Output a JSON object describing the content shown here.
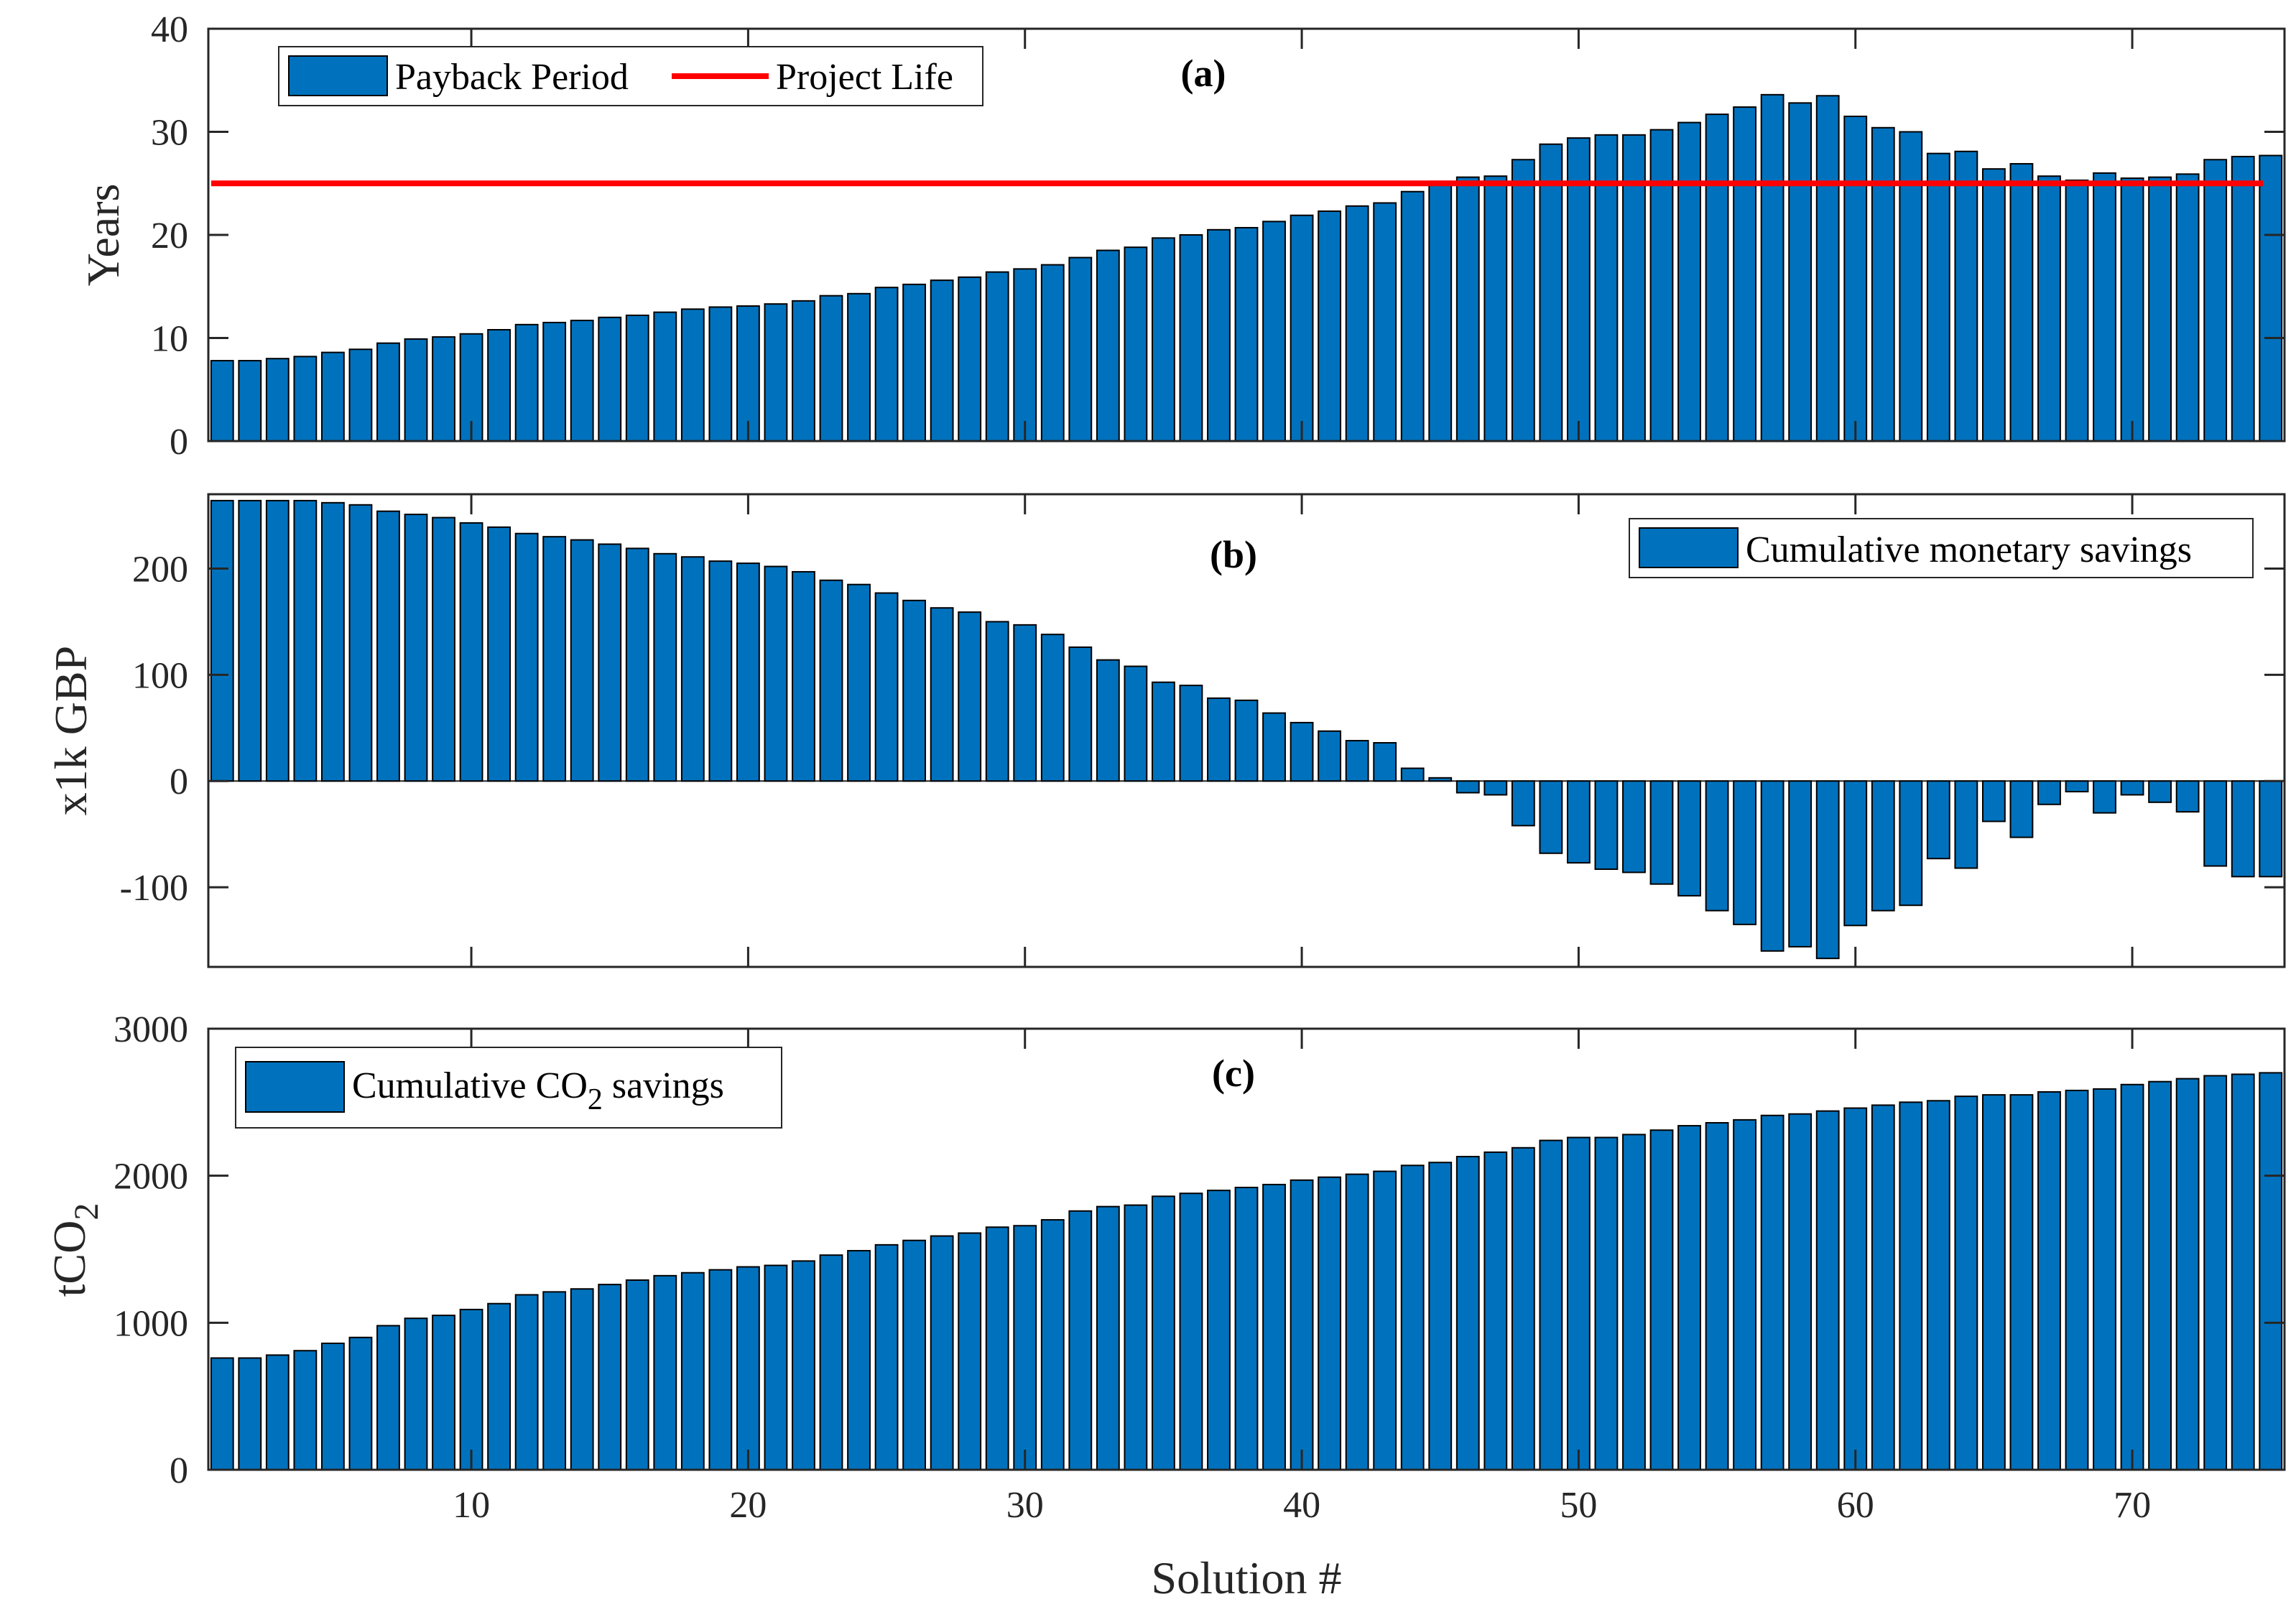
{
  "colors": {
    "bar": "#0072BD",
    "line": "#FF0000",
    "axis": "#262626"
  },
  "xlabel": "Solution #",
  "x_ticks": [
    "10",
    "20",
    "30",
    "40",
    "50",
    "60",
    "70"
  ],
  "chart_data": [
    {
      "type": "bar",
      "tag": "(a)",
      "ylabel": "Years",
      "ylim": [
        0,
        40
      ],
      "yticks": [
        "0",
        "10",
        "20",
        "30",
        "40"
      ],
      "xlim": [
        0.5,
        75.5
      ],
      "legend": {
        "bar_label": "Payback Period",
        "line_label": "Project Life",
        "location": "top-left"
      },
      "reference_line": {
        "name": "Project Life",
        "y": 25
      },
      "series": [
        {
          "name": "Payback Period",
          "values": [
            7.8,
            7.8,
            8,
            8.2,
            8.6,
            8.9,
            9.5,
            9.9,
            10.1,
            10.4,
            10.8,
            11.3,
            11.5,
            11.7,
            12,
            12.2,
            12.5,
            12.8,
            13,
            13.1,
            13.3,
            13.6,
            14.1,
            14.3,
            14.9,
            15.2,
            15.6,
            15.9,
            16.4,
            16.7,
            17.1,
            17.8,
            18.5,
            18.8,
            19.7,
            20,
            20.5,
            20.7,
            21.3,
            21.9,
            22.3,
            22.8,
            23.1,
            24.2,
            25.2,
            25.6,
            25.7,
            27.3,
            28.8,
            29.4,
            29.7,
            29.7,
            30.2,
            30.9,
            31.7,
            32.4,
            33.6,
            32.8,
            33.5,
            31.5,
            30.4,
            30,
            27.9,
            28.1,
            26.4,
            26.9,
            25.7,
            25.3,
            26,
            25.5,
            25.6,
            25.9,
            27.3,
            27.6,
            27.7
          ]
        }
      ]
    },
    {
      "type": "bar",
      "tag": "(b)",
      "ylabel": "x1k GBP",
      "ylim": [
        -175,
        270
      ],
      "yticks": [
        "-100",
        "0",
        "100",
        "200"
      ],
      "xlim": [
        0.5,
        75.5
      ],
      "legend": {
        "bar_label": "Cumulative monetary savings",
        "location": "top-right"
      },
      "series": [
        {
          "name": "Cumulative monetary savings",
          "values": [
            264,
            264,
            264,
            264,
            262,
            260,
            254,
            251,
            248,
            243,
            239,
            233,
            230,
            227,
            223,
            219,
            214,
            211,
            207,
            205,
            202,
            197,
            189,
            185,
            177,
            170,
            163,
            159,
            150,
            147,
            138,
            126,
            114,
            108,
            93,
            90,
            78,
            76,
            64,
            55,
            47,
            38,
            36,
            12,
            3,
            -11,
            -13,
            -42,
            -68,
            -77,
            -83,
            -86,
            -97,
            -108,
            -122,
            -135,
            -160,
            -156,
            -167,
            -136,
            -122,
            -117,
            -73,
            -82,
            -38,
            -53,
            -22,
            -10,
            -30,
            -13,
            -20,
            -29,
            -80,
            -90,
            -90
          ]
        }
      ]
    },
    {
      "type": "bar",
      "tag": "(c)",
      "ylabel": "tCO",
      "ylabel_sub": "2",
      "ylim": [
        0,
        3000
      ],
      "yticks": [
        "0",
        "1000",
        "2000",
        "3000"
      ],
      "xlim": [
        0.5,
        75.5
      ],
      "legend": {
        "bar_label": "Cumulative CO",
        "bar_label_sub": "2",
        "bar_label_suffix": " savings",
        "location": "top-left"
      },
      "series": [
        {
          "name": "Cumulative CO2 savings",
          "values": [
            760,
            760,
            780,
            810,
            860,
            900,
            980,
            1030,
            1050,
            1090,
            1130,
            1190,
            1210,
            1230,
            1260,
            1290,
            1320,
            1340,
            1360,
            1380,
            1390,
            1420,
            1460,
            1490,
            1530,
            1560,
            1590,
            1610,
            1650,
            1660,
            1700,
            1760,
            1790,
            1800,
            1860,
            1880,
            1900,
            1920,
            1940,
            1970,
            1990,
            2010,
            2030,
            2070,
            2090,
            2130,
            2160,
            2190,
            2240,
            2260,
            2260,
            2280,
            2310,
            2340,
            2360,
            2380,
            2410,
            2420,
            2440,
            2460,
            2480,
            2500,
            2510,
            2540,
            2550,
            2550,
            2570,
            2580,
            2590,
            2620,
            2640,
            2660,
            2680,
            2690,
            2700
          ]
        }
      ]
    }
  ]
}
